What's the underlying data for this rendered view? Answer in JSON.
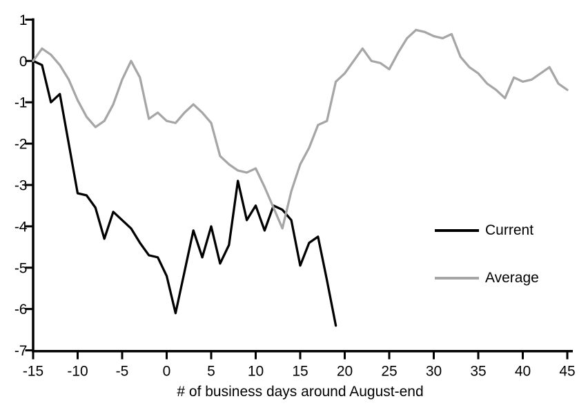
{
  "chart_data": {
    "type": "line",
    "title": "",
    "xlabel": "# of business days around August-end",
    "ylabel": "",
    "xlim": [
      -15,
      45
    ],
    "ylim": [
      -7,
      1
    ],
    "x_ticks": [
      -15,
      -10,
      -5,
      0,
      5,
      10,
      15,
      20,
      25,
      30,
      35,
      40,
      45
    ],
    "y_ticks": [
      1,
      0,
      -1,
      -2,
      -3,
      -4,
      -5,
      -6,
      -7
    ],
    "grid": false,
    "legend_position": "middle-right",
    "axis_color": "#000000",
    "series": [
      {
        "name": "Current",
        "color": "#000000",
        "x": [
          -15,
          -14,
          -13,
          -12,
          -11,
          -10,
          -9,
          -8,
          -7,
          -6,
          -5,
          -4,
          -3,
          -2,
          -1,
          0,
          1,
          2,
          3,
          4,
          5,
          6,
          7,
          8,
          9,
          10,
          11,
          12,
          13,
          14,
          15,
          16,
          17,
          18,
          19
        ],
        "values": [
          0,
          -0.1,
          -1.0,
          -0.8,
          -2.0,
          -3.2,
          -3.25,
          -3.55,
          -4.3,
          -3.65,
          -3.85,
          -4.05,
          -4.4,
          -4.7,
          -4.75,
          -5.2,
          -6.1,
          -5.1,
          -4.1,
          -4.75,
          -4.0,
          -4.9,
          -4.45,
          -2.9,
          -3.85,
          -3.5,
          -4.1,
          -3.5,
          -3.6,
          -3.85,
          -4.95,
          -4.4,
          -4.25,
          -5.3,
          -6.4
        ]
      },
      {
        "name": "Average",
        "color": "#a6a6a6",
        "x": [
          -15,
          -14,
          -13,
          -12,
          -11,
          -10,
          -9,
          -8,
          -7,
          -6,
          -5,
          -4,
          -3,
          -2,
          -1,
          0,
          1,
          2,
          3,
          4,
          5,
          6,
          7,
          8,
          9,
          10,
          11,
          12,
          13,
          14,
          15,
          16,
          17,
          18,
          19,
          20,
          21,
          22,
          23,
          24,
          25,
          26,
          27,
          28,
          29,
          30,
          31,
          32,
          33,
          34,
          35,
          36,
          37,
          38,
          39,
          40,
          41,
          42,
          43,
          44,
          45
        ],
        "values": [
          0,
          0.3,
          0.15,
          -0.1,
          -0.45,
          -0.95,
          -1.35,
          -1.6,
          -1.45,
          -1.05,
          -0.45,
          0.0,
          -0.4,
          -1.4,
          -1.25,
          -1.45,
          -1.5,
          -1.25,
          -1.05,
          -1.25,
          -1.5,
          -2.3,
          -2.5,
          -2.65,
          -2.7,
          -2.6,
          -3.05,
          -3.55,
          -4.05,
          -3.15,
          -2.5,
          -2.1,
          -1.55,
          -1.45,
          -0.5,
          -0.3,
          0.0,
          0.3,
          0.0,
          -0.05,
          -0.2,
          0.2,
          0.55,
          0.75,
          0.7,
          0.6,
          0.55,
          0.65,
          0.1,
          -0.15,
          -0.3,
          -0.55,
          -0.7,
          -0.9,
          -0.4,
          -0.5,
          -0.45,
          -0.3,
          -0.15,
          -0.55,
          -0.7
        ]
      }
    ]
  }
}
